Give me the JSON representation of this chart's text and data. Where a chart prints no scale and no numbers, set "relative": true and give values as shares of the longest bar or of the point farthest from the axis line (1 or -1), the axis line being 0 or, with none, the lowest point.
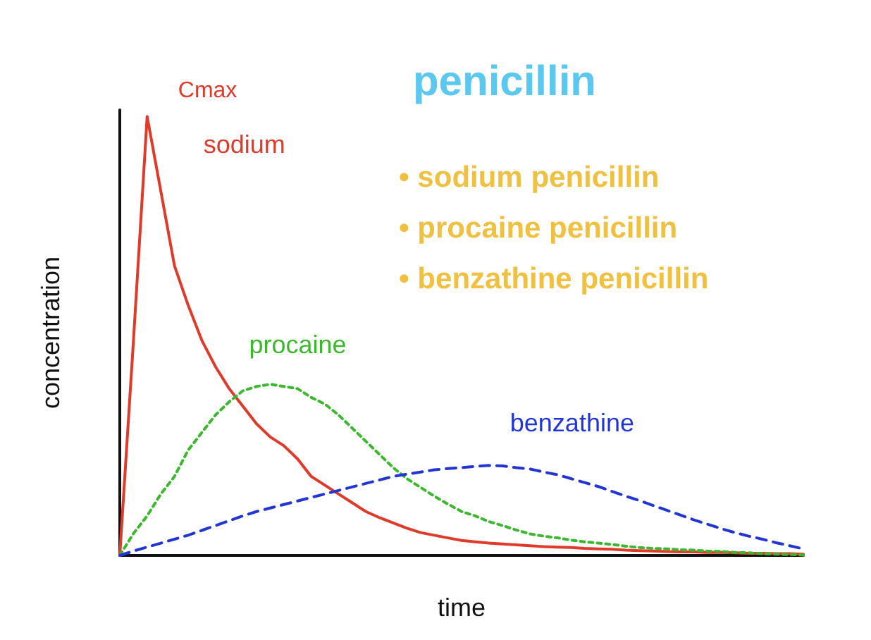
{
  "chart_data": {
    "type": "line",
    "title": "penicillin",
    "xlabel": "time",
    "ylabel": "concentration",
    "relative": true,
    "legend": false,
    "grid": false,
    "marker": "none",
    "categories": [
      null,
      null,
      null,
      null,
      null,
      null,
      null,
      null,
      null,
      null,
      null,
      null,
      null,
      null,
      null,
      null,
      null,
      null,
      null,
      null,
      null,
      null,
      null,
      null,
      null,
      null,
      null,
      null,
      null,
      null,
      null,
      null,
      null,
      null,
      null,
      null,
      null,
      null,
      null,
      null,
      null,
      null,
      null,
      null,
      null,
      null,
      null,
      null,
      null,
      null,
      null
    ],
    "series": [
      {
        "name": "sodium",
        "color": "#e03a2a",
        "line_style": "solid",
        "values": [
          0,
          0.49,
          1,
          0.83,
          0.66,
          0.57,
          0.49,
          0.43,
          0.38,
          0.34,
          0.3,
          0.27,
          0.25,
          0.22,
          0.18,
          0.16,
          0.14,
          0.12,
          0.1,
          0.086,
          0.074,
          0.062,
          0.052,
          0.046,
          0.04,
          0.034,
          0.031,
          0.028,
          0.026,
          0.024,
          0.022,
          0.02,
          0.019,
          0.018,
          0.016,
          0.015,
          0.014,
          0.012,
          0.011,
          0.01,
          0.009,
          0.008,
          0.008,
          0.007,
          0.007,
          0.006,
          0.005,
          0.005,
          0.004,
          0.004,
          0.003
        ]
      },
      {
        "name": "procaine",
        "color": "#3cb82e",
        "line_style": "dotted",
        "values": [
          0,
          0.05,
          0.09,
          0.14,
          0.18,
          0.24,
          0.28,
          0.32,
          0.35,
          0.375,
          0.385,
          0.39,
          0.385,
          0.38,
          0.36,
          0.345,
          0.32,
          0.29,
          0.26,
          0.23,
          0.2,
          0.175,
          0.155,
          0.135,
          0.117,
          0.1,
          0.09,
          0.077,
          0.068,
          0.058,
          0.049,
          0.044,
          0.04,
          0.035,
          0.031,
          0.028,
          0.025,
          0.021,
          0.018,
          0.016,
          0.015,
          0.013,
          0.012,
          0.01,
          0.009,
          0.007,
          0.006,
          0.004,
          0.003,
          0.002,
          0.001
        ]
      },
      {
        "name": "benzathine",
        "color": "#2236d6",
        "line_style": "dashed",
        "values": [
          0,
          0.01,
          0.019,
          0.028,
          0.037,
          0.046,
          0.057,
          0.068,
          0.079,
          0.09,
          0.1,
          0.108,
          0.116,
          0.124,
          0.132,
          0.14,
          0.148,
          0.156,
          0.164,
          0.172,
          0.18,
          0.185,
          0.19,
          0.195,
          0.198,
          0.2,
          0.203,
          0.205,
          0.204,
          0.2,
          0.197,
          0.19,
          0.184,
          0.175,
          0.166,
          0.157,
          0.146,
          0.135,
          0.125,
          0.114,
          0.103,
          0.092,
          0.081,
          0.071,
          0.061,
          0.052,
          0.044,
          0.037,
          0.029,
          0.022,
          0.015
        ]
      }
    ],
    "annotations": [
      "Cmax",
      "• sodium penicillin",
      "• procaine penicillin",
      "• benzathine penicillin"
    ]
  }
}
